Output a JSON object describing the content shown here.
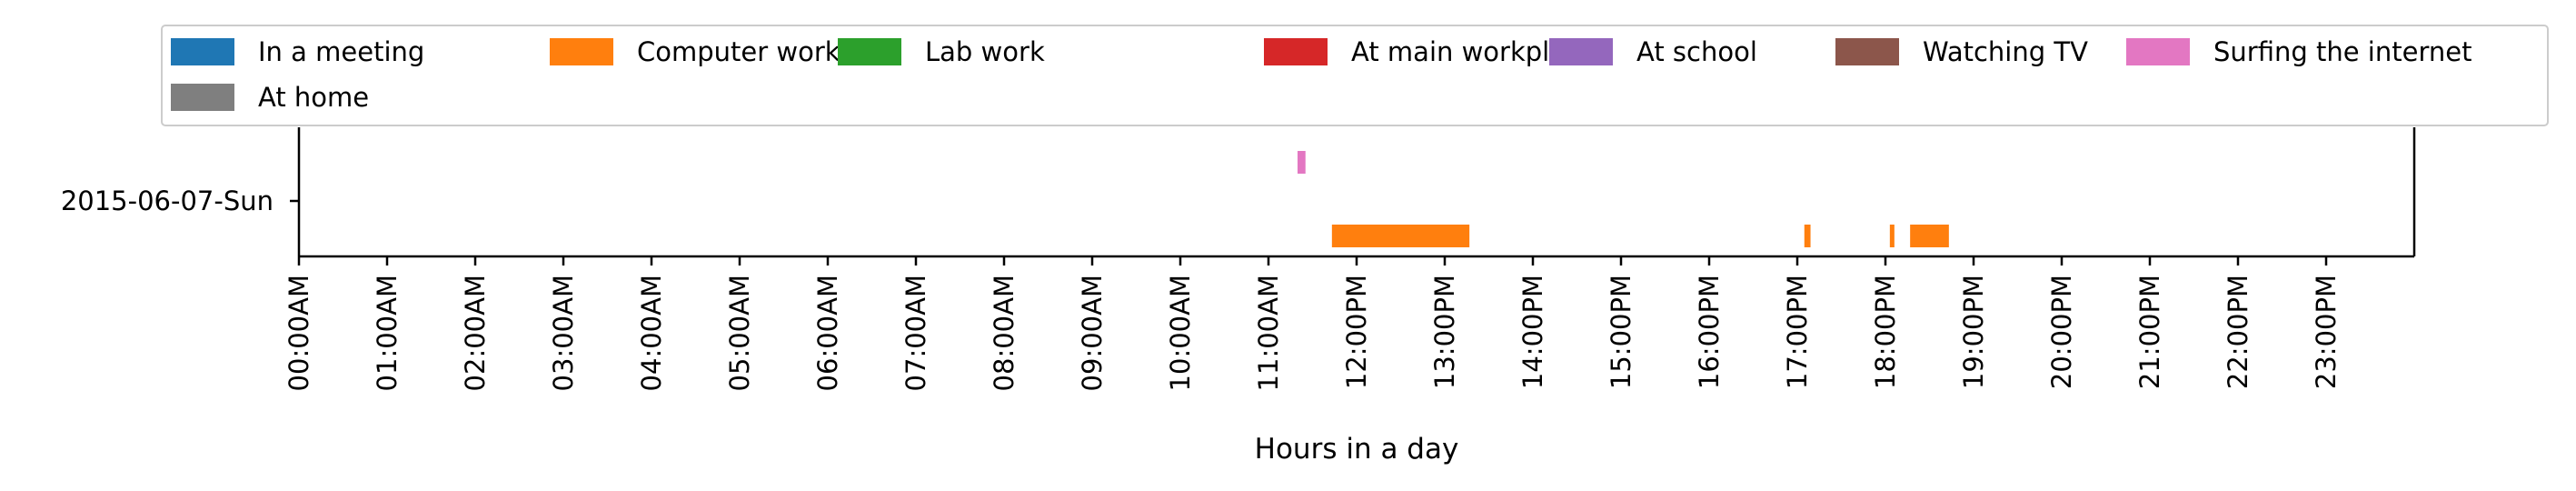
{
  "chart_data": {
    "type": "timeline",
    "xlabel": "Hours in a day",
    "ylabel": "",
    "xlim": [
      0,
      24
    ],
    "categories": [
      "2015-06-07-Sun"
    ],
    "x_ticks": [
      0,
      1,
      2,
      3,
      4,
      5,
      6,
      7,
      8,
      9,
      10,
      11,
      12,
      13,
      14,
      15,
      16,
      17,
      18,
      19,
      20,
      21,
      22,
      23
    ],
    "x_tick_labels": [
      "00:00AM",
      "01:00AM",
      "02:00AM",
      "03:00AM",
      "04:00AM",
      "05:00AM",
      "06:00AM",
      "07:00AM",
      "08:00AM",
      "09:00AM",
      "10:00AM",
      "11:00AM",
      "12:00PM",
      "13:00PM",
      "14:00PM",
      "15:00PM",
      "16:00PM",
      "17:00PM",
      "18:00PM",
      "19:00PM",
      "20:00PM",
      "21:00PM",
      "22:00PM",
      "23:00PM"
    ],
    "legend_position": "top",
    "grid": false,
    "series": [
      {
        "name": "In a meeting",
        "color": "#1f77b4",
        "intervals": []
      },
      {
        "name": "Computer work",
        "color": "#ff7f0e",
        "intervals": [
          [
            11.72,
            13.28
          ],
          [
            17.08,
            17.15
          ],
          [
            18.05,
            18.1
          ],
          [
            18.28,
            18.72
          ]
        ]
      },
      {
        "name": "Lab work",
        "color": "#2ca02c",
        "intervals": []
      },
      {
        "name": "At main workplace",
        "color": "#d62728",
        "intervals": []
      },
      {
        "name": "At school",
        "color": "#9467bd",
        "intervals": []
      },
      {
        "name": "Watching TV",
        "color": "#8c564b",
        "intervals": []
      },
      {
        "name": "Surfing the internet",
        "color": "#e377c2",
        "intervals": [
          [
            11.33,
            11.42
          ]
        ]
      },
      {
        "name": "At home",
        "color": "#7f7f7f",
        "intervals": []
      }
    ]
  }
}
